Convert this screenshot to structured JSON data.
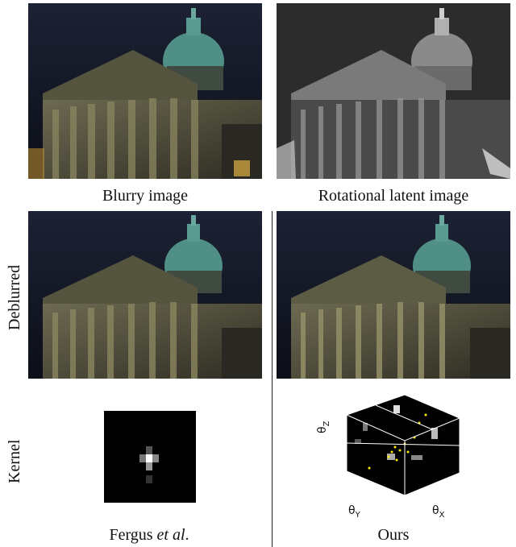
{
  "captions": {
    "blurry": "Blurry image",
    "rotational": "Rotational latent image",
    "fergus_name": "Fergus ",
    "fergus_etal": "et al",
    "fergus_period": ".",
    "ours": "Ours"
  },
  "row_labels": {
    "deblurred": "Deblurred",
    "kernel": "Kernel"
  },
  "axes_3d": {
    "z": {
      "symbol": "θ",
      "sub": "Z"
    },
    "y": {
      "symbol": "θ",
      "sub": "Y"
    },
    "x": {
      "symbol": "θ",
      "sub": "X"
    }
  },
  "colors": {
    "sky": "#141a2c",
    "dome": "#4f8f86",
    "stone": "#5a5a48",
    "kernel_bg": "#000000",
    "kernel_dots": "#ffee00"
  }
}
